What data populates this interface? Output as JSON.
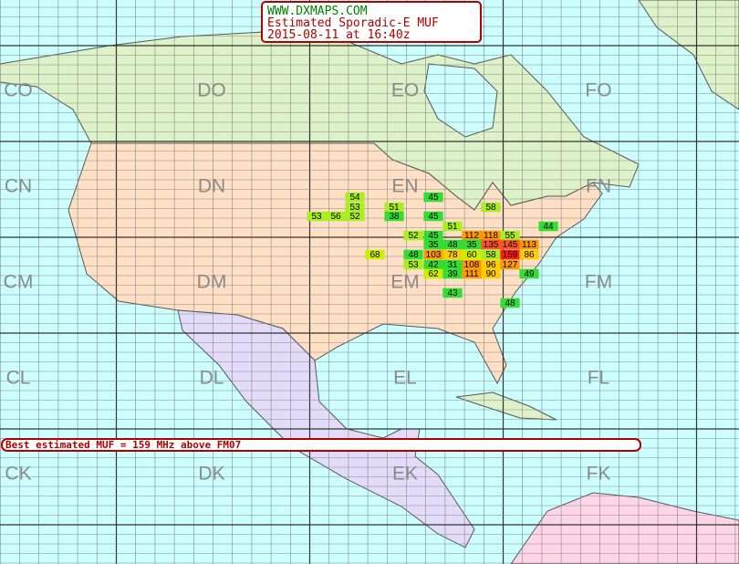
{
  "header": {
    "site": "WWW.DXMAPS.COM",
    "title": "Estimated Sporadic-E MUF",
    "timestamp": "2015-08-11 at 16:40z"
  },
  "grid_labels": [
    [
      "CO",
      "DO",
      "EO",
      "FO"
    ],
    [
      "CN",
      "DN",
      "EN",
      "FN"
    ],
    [
      "CM",
      "DM",
      "EM",
      "FM"
    ],
    [
      "CL",
      "DL",
      "EL",
      "FL"
    ],
    [
      "CK",
      "DK",
      "EK",
      "FK"
    ]
  ],
  "muf_cells": [
    54,
    53,
    52,
    56,
    53,
    51,
    38,
    45,
    45,
    58,
    51,
    44,
    52,
    45,
    112,
    118,
    55,
    35,
    48,
    35,
    135,
    145,
    113,
    68,
    48,
    103,
    78,
    60,
    58,
    159,
    86,
    53,
    42,
    31,
    108,
    96,
    127,
    62,
    39,
    111,
    90,
    49,
    43,
    48
  ],
  "banner": "Best estimated MUF = 159 MHz above FM07"
}
